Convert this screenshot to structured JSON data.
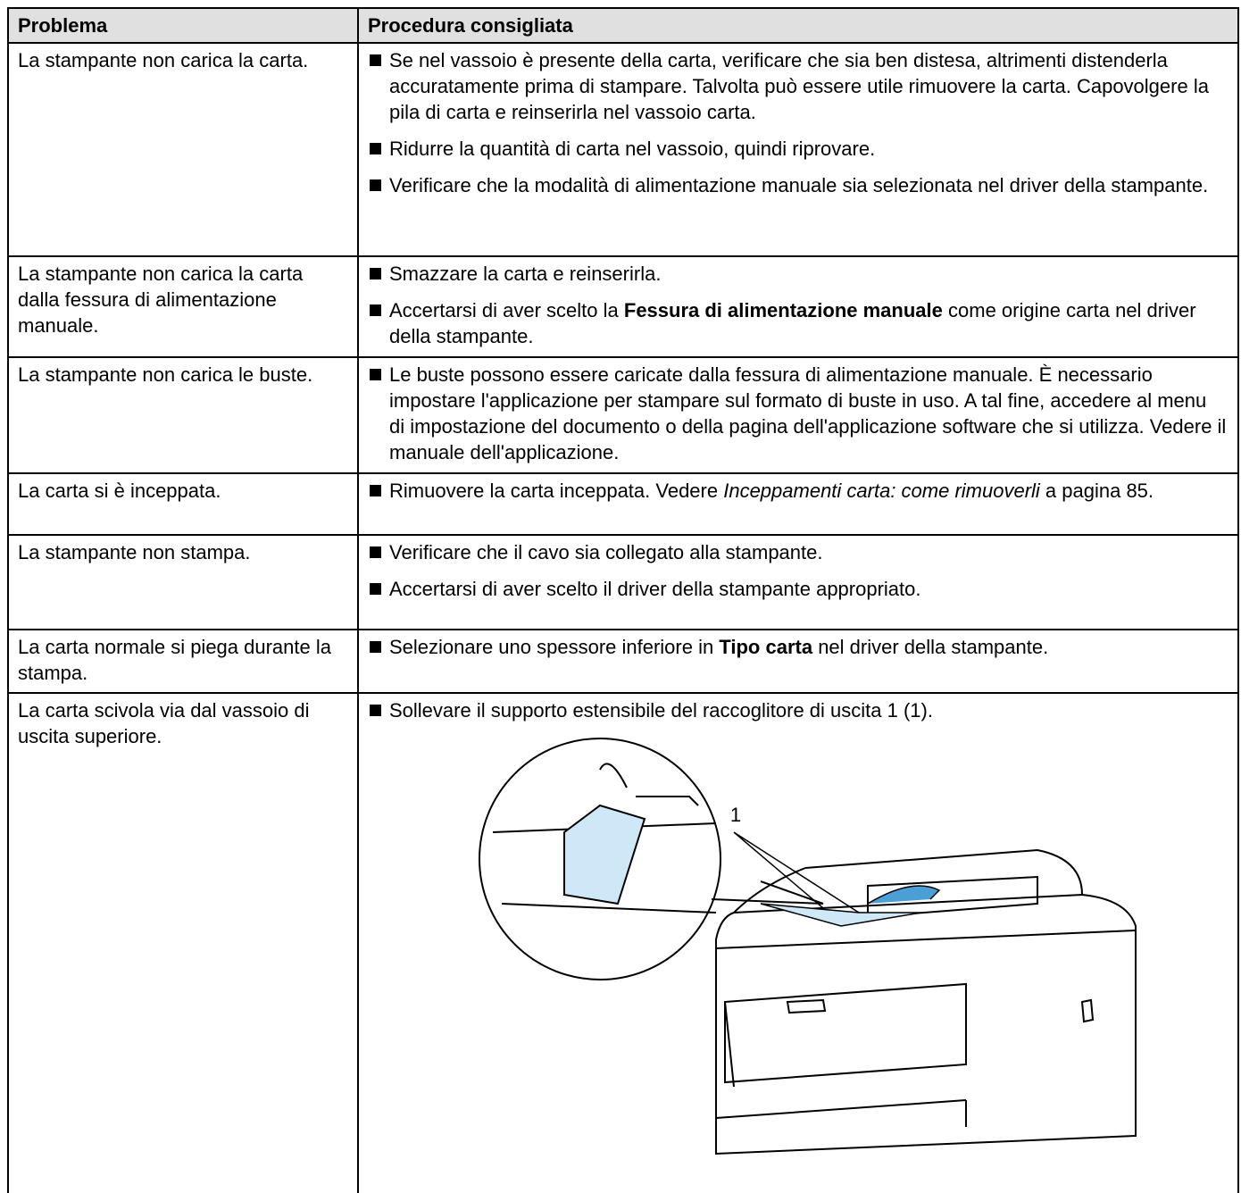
{
  "header": [
    "Problema",
    "Procedura consigliata"
  ],
  "rows": [
    {
      "problem": "La stampante non carica la carta.",
      "items": [
        [
          "Se nel vassoio è presente della carta, verificare che sia ben distesa, altrimenti distenderla accuratamente prima di stampare. Talvolta può essere utile rimuovere la carta. Capovolgere la pila di carta e reinserirla nel vassoio carta."
        ],
        [
          "Ridurre la quantità di carta nel vassoio, quindi riprovare."
        ],
        [
          "Verificare che la modalità di alimentazione manuale sia selezionata nel driver della stampante."
        ]
      ]
    },
    {
      "problem": "La stampante non carica la carta dalla fessura di alimentazione manuale.",
      "items": [
        [
          "Smazzare la carta e reinserirla."
        ],
        [
          "Accertarsi di aver scelto la ",
          "Fessura di alimentazione manuale",
          " come origine carta nel driver della stampante."
        ]
      ]
    },
    {
      "problem": "La stampante non carica le buste.",
      "items": [
        [
          "Le buste possono essere caricate dalla fessura di alimentazione manuale. È necessario impostare l'applicazione per stampare sul formato di buste in uso. A tal fine, accedere al menu di impostazione del documento o della pagina dell'applicazione software che si utilizza. Vedere il manuale dell'applicazione."
        ]
      ]
    },
    {
      "problem": "La carta si è inceppata.",
      "items": [
        [
          "Rimuovere la carta inceppata. Vedere ",
          "Inceppamenti carta: come rimuoverli",
          " a pagina 85."
        ]
      ]
    },
    {
      "problem": "La stampante non stampa.",
      "items": [
        [
          "Verificare che il cavo sia collegato alla stampante."
        ],
        [
          "Accertarsi di aver scelto il driver della stampante appropriato."
        ]
      ]
    },
    {
      "problem": "La carta normale si piega durante la stampa.",
      "items": [
        [
          "Selezionare uno spessore inferiore in ",
          "Tipo carta",
          " nel driver della stampante."
        ]
      ]
    },
    {
      "problem": "La carta scivola via dal vassoio di uscita superiore.",
      "items": [
        [
          "Sollevare il supporto estensibile del raccoglitore di uscita 1 (1)."
        ]
      ],
      "figure_callout": "1"
    }
  ]
}
